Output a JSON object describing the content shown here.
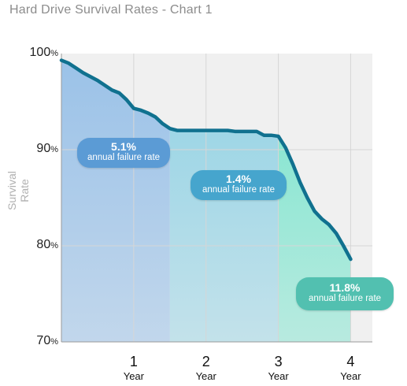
{
  "title": "Hard Drive Survival Rates - Chart 1",
  "colors": {
    "line": "#10718f",
    "phase1_fill": "#9bc2e8",
    "phase2_fill": "#9ed6e6",
    "phase3_fill": "#8ae6d2",
    "pill1": "#5b9bd5",
    "pill2": "#46a5cd",
    "pill3": "#52c0b0",
    "plot_bg": "#f0f0f0",
    "grid": "#d6d6d6"
  },
  "chart_data": {
    "type": "area",
    "title": "Hard Drive Survival Rates - Chart 1",
    "ylabel": "Survival Rate",
    "xlabel": "",
    "xlim": [
      0,
      4.3
    ],
    "ylim": [
      70,
      100
    ],
    "y_ticks": [
      {
        "value": 100,
        "num": "100",
        "unit": "%"
      },
      {
        "value": 90,
        "num": "90",
        "unit": "%"
      },
      {
        "value": 80,
        "num": "80",
        "unit": "%"
      },
      {
        "value": 70,
        "num": "70",
        "unit": "%"
      }
    ],
    "x_ticks": [
      {
        "value": 1,
        "num": "1",
        "unit": "Year"
      },
      {
        "value": 2,
        "num": "2",
        "unit": "Year"
      },
      {
        "value": 3,
        "num": "3",
        "unit": "Year"
      },
      {
        "value": 4,
        "num": "4",
        "unit": "Year"
      }
    ],
    "grid": true,
    "series": [
      {
        "x": [
          0,
          0.1,
          0.2,
          0.3,
          0.4,
          0.5,
          0.6,
          0.7,
          0.8,
          0.9,
          1.0,
          1.1,
          1.2,
          1.3,
          1.4,
          1.5,
          1.6,
          1.7,
          1.8,
          1.9,
          2.0,
          2.1,
          2.2,
          2.3,
          2.4,
          2.5,
          2.6,
          2.7,
          2.8,
          2.9,
          3.0,
          3.1,
          3.2,
          3.3,
          3.4,
          3.5,
          3.6,
          3.7,
          3.8,
          3.9,
          4.0
        ],
        "y": [
          99.3,
          99.0,
          98.5,
          98.0,
          97.6,
          97.2,
          96.7,
          96.2,
          95.9,
          95.2,
          94.3,
          94.1,
          93.8,
          93.4,
          92.7,
          92.2,
          92.0,
          92.0,
          92.0,
          92.0,
          92.0,
          92.0,
          92.0,
          92.0,
          91.9,
          91.9,
          91.9,
          91.9,
          91.5,
          91.5,
          91.4,
          90.2,
          88.5,
          86.6,
          85.0,
          83.6,
          82.8,
          82.2,
          81.3,
          80.0,
          78.6
        ]
      }
    ],
    "phases": [
      {
        "x_start": 0,
        "x_end": 1.5,
        "rate": "5.1%",
        "label": "annual failure rate"
      },
      {
        "x_start": 1.5,
        "x_end": 3.0,
        "rate": "1.4%",
        "label": "annual failure rate"
      },
      {
        "x_start": 3.0,
        "x_end": 4.0,
        "rate": "11.8%",
        "label": "annual failure rate"
      }
    ]
  }
}
